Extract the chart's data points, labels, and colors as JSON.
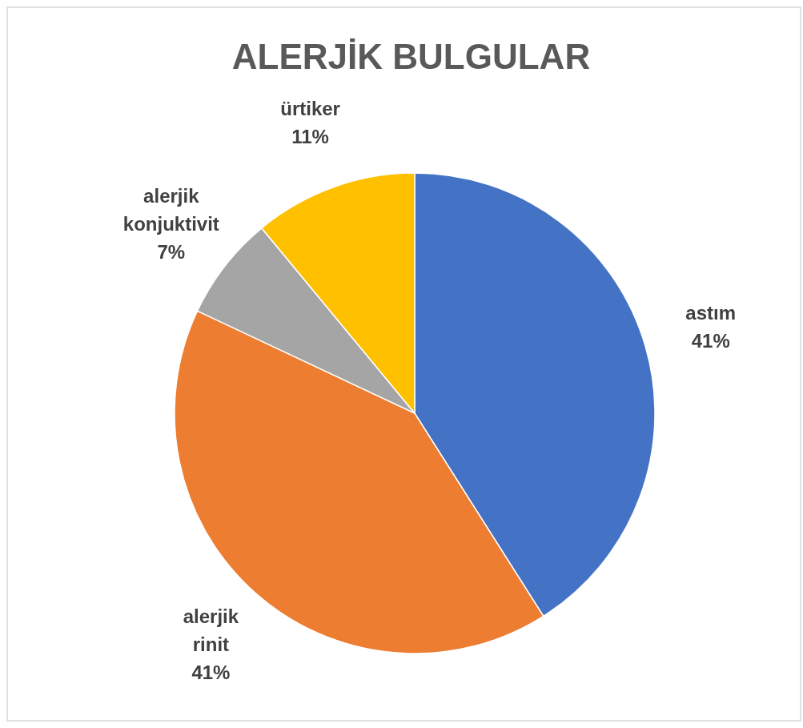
{
  "chart_data": {
    "type": "pie",
    "title": "ALERJİK BULGULAR",
    "categories": [
      "astım",
      "alerjik rinit",
      "alerjik konjuktivit",
      "ürtiker"
    ],
    "values": [
      41,
      41,
      7,
      11
    ],
    "colors": [
      "#4472c4",
      "#ed7d31",
      "#a5a5a5",
      "#ffc000"
    ],
    "value_labels": [
      "41%",
      "41%",
      "7%",
      "11%"
    ],
    "legend": false
  }
}
